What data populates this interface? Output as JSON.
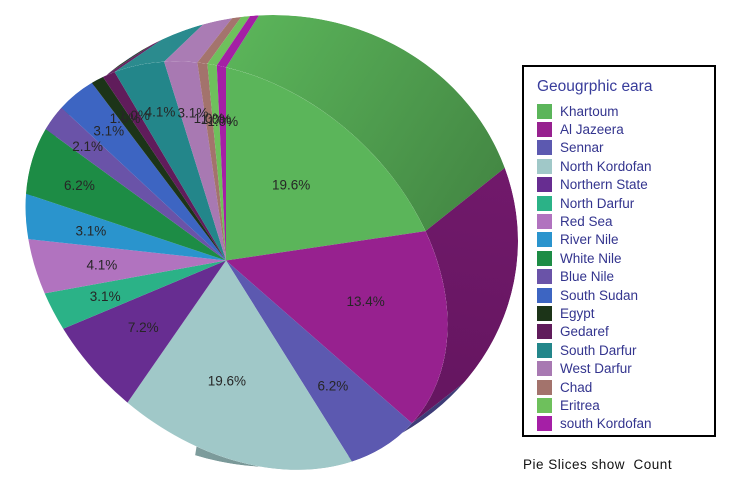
{
  "chart_data": {
    "type": "pie",
    "style": "3d-pie",
    "legend_title": "Geougrphic eara",
    "legend_position": "right",
    "caption": "Pie Slices show  Count",
    "slices": [
      {
        "label": "Khartoum",
        "pct": 19.6,
        "pct_label": "19.6%",
        "color": "#5BB55A",
        "label_r": 0.56
      },
      {
        "label": "Al Jazeera",
        "pct": 13.4,
        "pct_label": "13.4%",
        "color": "#97218F",
        "label_r": 0.63
      },
      {
        "label": "Sennar",
        "pct": 6.2,
        "pct_label": "6.2%",
        "color": "#5C59B0",
        "label_r": 0.675
      },
      {
        "label": "North Kordofan",
        "pct": 19.6,
        "pct_label": "19.6%",
        "color": "#A0C8C8",
        "label_r": 0.61
      },
      {
        "label": "Northern State",
        "pct": 7.2,
        "pct_label": "7.2%",
        "color": "#672D91",
        "label_r": 0.62
      },
      {
        "label": "North Darfur",
        "pct": 3.1,
        "pct_label": "3.1%",
        "color": "#2BB287",
        "label_r": 0.7
      },
      {
        "label": "Red Sea",
        "pct": 4.1,
        "pct_label": "4.1%",
        "color": "#B173BF",
        "label_r": 0.65
      },
      {
        "label": "River Nile",
        "pct": 3.1,
        "pct_label": "3.1%",
        "color": "#2A94CD",
        "label_r": 0.675
      },
      {
        "label": "White Nile",
        "pct": 6.2,
        "pct_label": "6.2%",
        "color": "#1D8C45",
        "label_r": 0.755
      },
      {
        "label": "Blue Nile",
        "pct": 2.1,
        "pct_label": "2.1%",
        "color": "#6A53A8",
        "label_r": 0.8
      },
      {
        "label": "South Sudan",
        "pct": 3.1,
        "pct_label": "3.1%",
        "color": "#3D65C2",
        "label_r": 0.78
      },
      {
        "label": "Egypt",
        "pct": 1.0,
        "pct_label": "1.0%",
        "color": "#1C3418",
        "label_r": 0.785
      },
      {
        "label": "Gedaref",
        "pct": 1.0,
        "pct_label": "1.0%",
        "color": "#601C5B",
        "label_r": 0.78
      },
      {
        "label": "South Darfur",
        "pct": 4.1,
        "pct_label": "4.1%",
        "color": "#23868A",
        "label_r": 0.76
      },
      {
        "label": "West Darfur",
        "pct": 3.1,
        "pct_label": "3.1%",
        "color": "#A879B2",
        "label_r": 0.74
      },
      {
        "label": "Chad",
        "pct": 1.0,
        "pct_label": "1.0%",
        "color": "#A3736C",
        "label_r": 0.72
      },
      {
        "label": "Eritrea",
        "pct": 1.0,
        "pct_label": "1.0%",
        "color": "#6EC05C",
        "label_r": 0.72
      },
      {
        "label": "south Kordofan",
        "pct": 1.0,
        "pct_label": "1.0%",
        "color": "#A51FA6",
        "label_r": 0.715
      }
    ]
  }
}
